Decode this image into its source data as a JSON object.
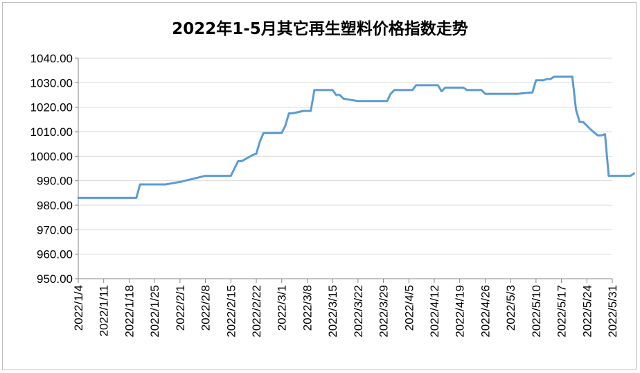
{
  "chart_data": {
    "type": "line",
    "title": "2022年1-5月其它再生塑料价格指数走势",
    "xlabel": "",
    "ylabel": "",
    "ylim": [
      950,
      1040
    ],
    "y_ticks": [
      "950.00",
      "960.00",
      "970.00",
      "980.00",
      "990.00",
      "1000.00",
      "1010.00",
      "1020.00",
      "1030.00",
      "1040.00"
    ],
    "x_ticks": [
      "2022/1/4",
      "2022/1/11",
      "2022/1/18",
      "2022/1/25",
      "2022/2/1",
      "2022/2/8",
      "2022/2/15",
      "2022/2/22",
      "2022/3/1",
      "2022/3/8",
      "2022/3/15",
      "2022/3/22",
      "2022/3/29",
      "2022/4/5",
      "2022/4/12",
      "2022/4/19",
      "2022/4/26",
      "2022/5/3",
      "2022/5/10",
      "2022/5/17",
      "2022/5/24",
      "2022/5/31"
    ],
    "grid": "horizontal",
    "legend": "none",
    "series": [
      {
        "color": "#5b9bd5",
        "points": [
          [
            "2022/1/4",
            983.0
          ],
          [
            "2022/1/20",
            983.0
          ],
          [
            "2022/1/21",
            988.5
          ],
          [
            "2022/1/28",
            988.5
          ],
          [
            "2022/2/1",
            989.5
          ],
          [
            "2022/2/8",
            992.0
          ],
          [
            "2022/2/15",
            992.0
          ],
          [
            "2022/2/16",
            995.0
          ],
          [
            "2022/2/17",
            998.0
          ],
          [
            "2022/2/18",
            998.0
          ],
          [
            "2022/2/21",
            1000.5
          ],
          [
            "2022/2/22",
            1001.0
          ],
          [
            "2022/2/23",
            1006.0
          ],
          [
            "2022/2/24",
            1009.5
          ],
          [
            "2022/3/1",
            1009.5
          ],
          [
            "2022/3/2",
            1012.5
          ],
          [
            "2022/3/3",
            1017.5
          ],
          [
            "2022/3/4",
            1017.5
          ],
          [
            "2022/3/7",
            1018.5
          ],
          [
            "2022/3/9",
            1018.5
          ],
          [
            "2022/3/10",
            1027.0
          ],
          [
            "2022/3/15",
            1027.0
          ],
          [
            "2022/3/16",
            1025.0
          ],
          [
            "2022/3/17",
            1025.0
          ],
          [
            "2022/3/18",
            1023.5
          ],
          [
            "2022/3/22",
            1022.5
          ],
          [
            "2022/3/30",
            1022.5
          ],
          [
            "2022/3/31",
            1025.5
          ],
          [
            "2022/4/1",
            1027.0
          ],
          [
            "2022/4/6",
            1027.0
          ],
          [
            "2022/4/7",
            1029.0
          ],
          [
            "2022/4/13",
            1029.0
          ],
          [
            "2022/4/14",
            1026.5
          ],
          [
            "2022/4/15",
            1028.0
          ],
          [
            "2022/4/20",
            1028.0
          ],
          [
            "2022/4/21",
            1027.0
          ],
          [
            "2022/4/25",
            1027.0
          ],
          [
            "2022/4/26",
            1025.5
          ],
          [
            "2022/5/5",
            1025.5
          ],
          [
            "2022/5/7",
            1025.8
          ],
          [
            "2022/5/9",
            1026.0
          ],
          [
            "2022/5/10",
            1031.0
          ],
          [
            "2022/5/12",
            1031.0
          ],
          [
            "2022/5/13",
            1031.5
          ],
          [
            "2022/5/14",
            1031.5
          ],
          [
            "2022/5/15",
            1032.5
          ],
          [
            "2022/5/20",
            1032.5
          ],
          [
            "2022/5/21",
            1019.0
          ],
          [
            "2022/5/22",
            1014.0
          ],
          [
            "2022/5/23",
            1014.0
          ],
          [
            "2022/5/25",
            1011.0
          ],
          [
            "2022/5/27",
            1008.5
          ],
          [
            "2022/5/28",
            1008.5
          ],
          [
            "2022/5/29",
            1009.0
          ],
          [
            "2022/5/30",
            992.0
          ],
          [
            "2022/6/5",
            992.0
          ],
          [
            "2022/6/6",
            993.0
          ]
        ]
      }
    ]
  }
}
